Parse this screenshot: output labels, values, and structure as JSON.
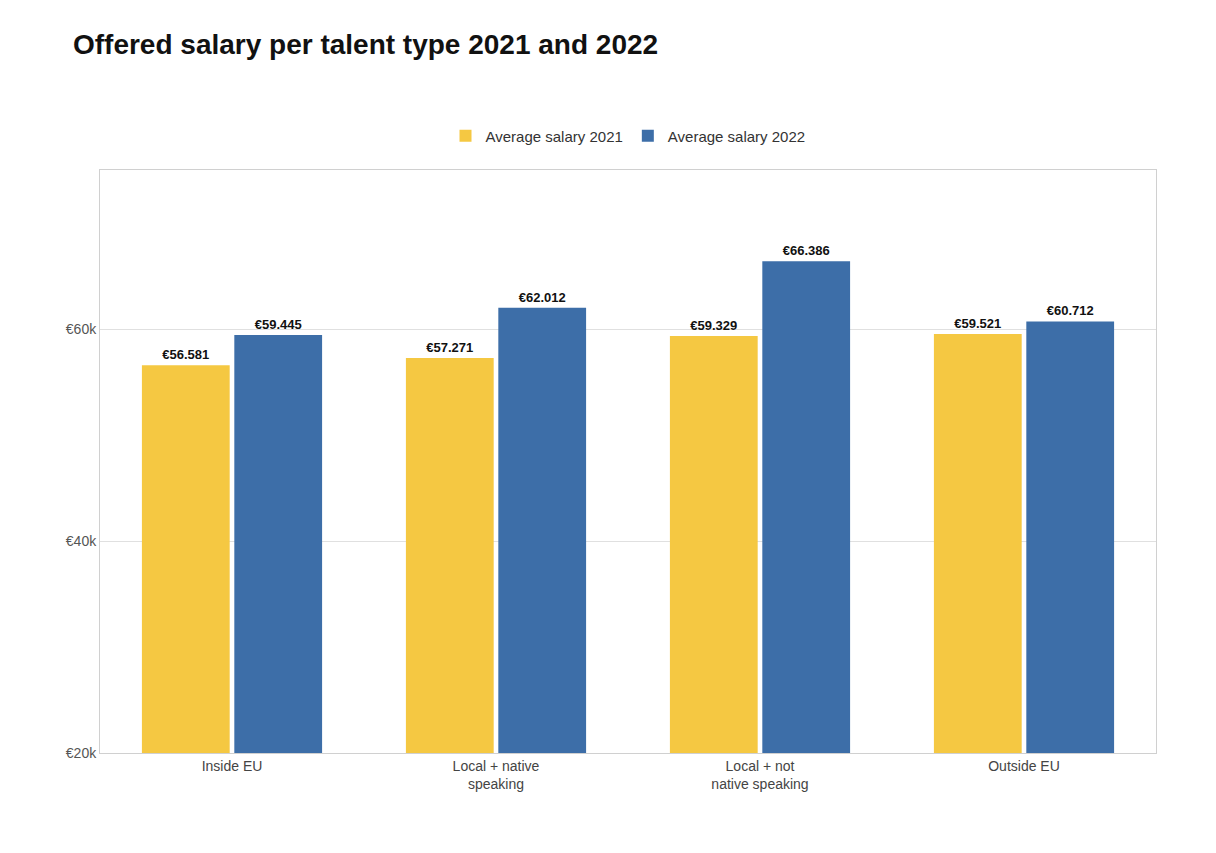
{
  "chart_data": {
    "type": "bar",
    "title": "Offered salary per talent type 2021 and 2022",
    "categories": [
      "Inside EU",
      "Local + native\nspeaking",
      "Local + not\nnative speaking",
      "Outside EU"
    ],
    "series": [
      {
        "name": "Average salary 2021",
        "color": "#F5C842",
        "values": [
          56581,
          57271,
          59329,
          59521
        ],
        "value_labels": [
          "€56.581",
          "€57.271",
          "€59.329",
          "€59.521"
        ]
      },
      {
        "name": "Average salary 2022",
        "color": "#3D6EA8",
        "values": [
          59445,
          62012,
          66386,
          60712
        ],
        "value_labels": [
          "€59.445",
          "€62.012",
          "€66.386",
          "€60.712"
        ]
      }
    ],
    "ylim": [
      20000,
      75000
    ],
    "yticks": [
      {
        "value": 20000,
        "label": "€20k"
      },
      {
        "value": 40000,
        "label": "€40k"
      },
      {
        "value": 60000,
        "label": "€60k"
      }
    ],
    "grid": true,
    "legend": "top",
    "data_labels": true
  }
}
